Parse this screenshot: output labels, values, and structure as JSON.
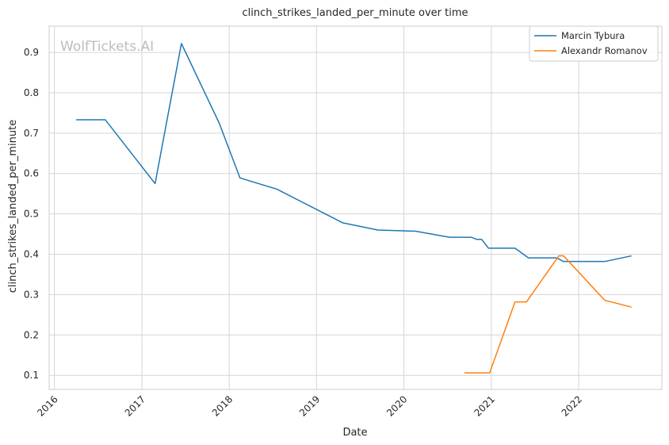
{
  "chart_data": {
    "type": "line",
    "title": "clinch_strikes_landed_per_minute over time",
    "xlabel": "Date",
    "ylabel": "clinch_strikes_landed_per_minute",
    "watermark": "WolfTickets.AI",
    "xlim": [
      "2015-12-10",
      "2022-12-15"
    ],
    "ylim": [
      0.065,
      0.965
    ],
    "x_ticks": [
      "2016",
      "2017",
      "2018",
      "2019",
      "2020",
      "2021",
      "2022"
    ],
    "y_ticks": [
      "0.1",
      "0.2",
      "0.3",
      "0.4",
      "0.5",
      "0.6",
      "0.7",
      "0.8",
      "0.9"
    ],
    "grid": true,
    "legend_position": "top-right",
    "series": [
      {
        "name": "Marcin Tybura",
        "color": "#1f77b4",
        "points": [
          {
            "x": "2016-04-01",
            "y": 0.733
          },
          {
            "x": "2016-08-01",
            "y": 0.733
          },
          {
            "x": "2017-02-25",
            "y": 0.575
          },
          {
            "x": "2017-06-15",
            "y": 0.922
          },
          {
            "x": "2017-11-20",
            "y": 0.725
          },
          {
            "x": "2018-02-15",
            "y": 0.589
          },
          {
            "x": "2018-07-20",
            "y": 0.561
          },
          {
            "x": "2019-04-20",
            "y": 0.478
          },
          {
            "x": "2019-09-15",
            "y": 0.46
          },
          {
            "x": "2020-02-20",
            "y": 0.457
          },
          {
            "x": "2020-07-10",
            "y": 0.442
          },
          {
            "x": "2020-10-10",
            "y": 0.442
          },
          {
            "x": "2020-10-31",
            "y": 0.437
          },
          {
            "x": "2020-11-21",
            "y": 0.437
          },
          {
            "x": "2020-12-20",
            "y": 0.415
          },
          {
            "x": "2021-04-10",
            "y": 0.415
          },
          {
            "x": "2021-06-05",
            "y": 0.391
          },
          {
            "x": "2021-10-01",
            "y": 0.391
          },
          {
            "x": "2021-10-30",
            "y": 0.382
          },
          {
            "x": "2022-04-20",
            "y": 0.382
          },
          {
            "x": "2022-08-10",
            "y": 0.396
          }
        ]
      },
      {
        "name": "Alexandr Romanov",
        "color": "#ff7f0e",
        "points": [
          {
            "x": "2020-09-10",
            "y": 0.106
          },
          {
            "x": "2020-12-25",
            "y": 0.106
          },
          {
            "x": "2021-04-10",
            "y": 0.282
          },
          {
            "x": "2021-05-28",
            "y": 0.282
          },
          {
            "x": "2021-10-10",
            "y": 0.396
          },
          {
            "x": "2021-10-30",
            "y": 0.396
          },
          {
            "x": "2022-04-20",
            "y": 0.286
          },
          {
            "x": "2022-08-10",
            "y": 0.269
          }
        ]
      }
    ]
  }
}
